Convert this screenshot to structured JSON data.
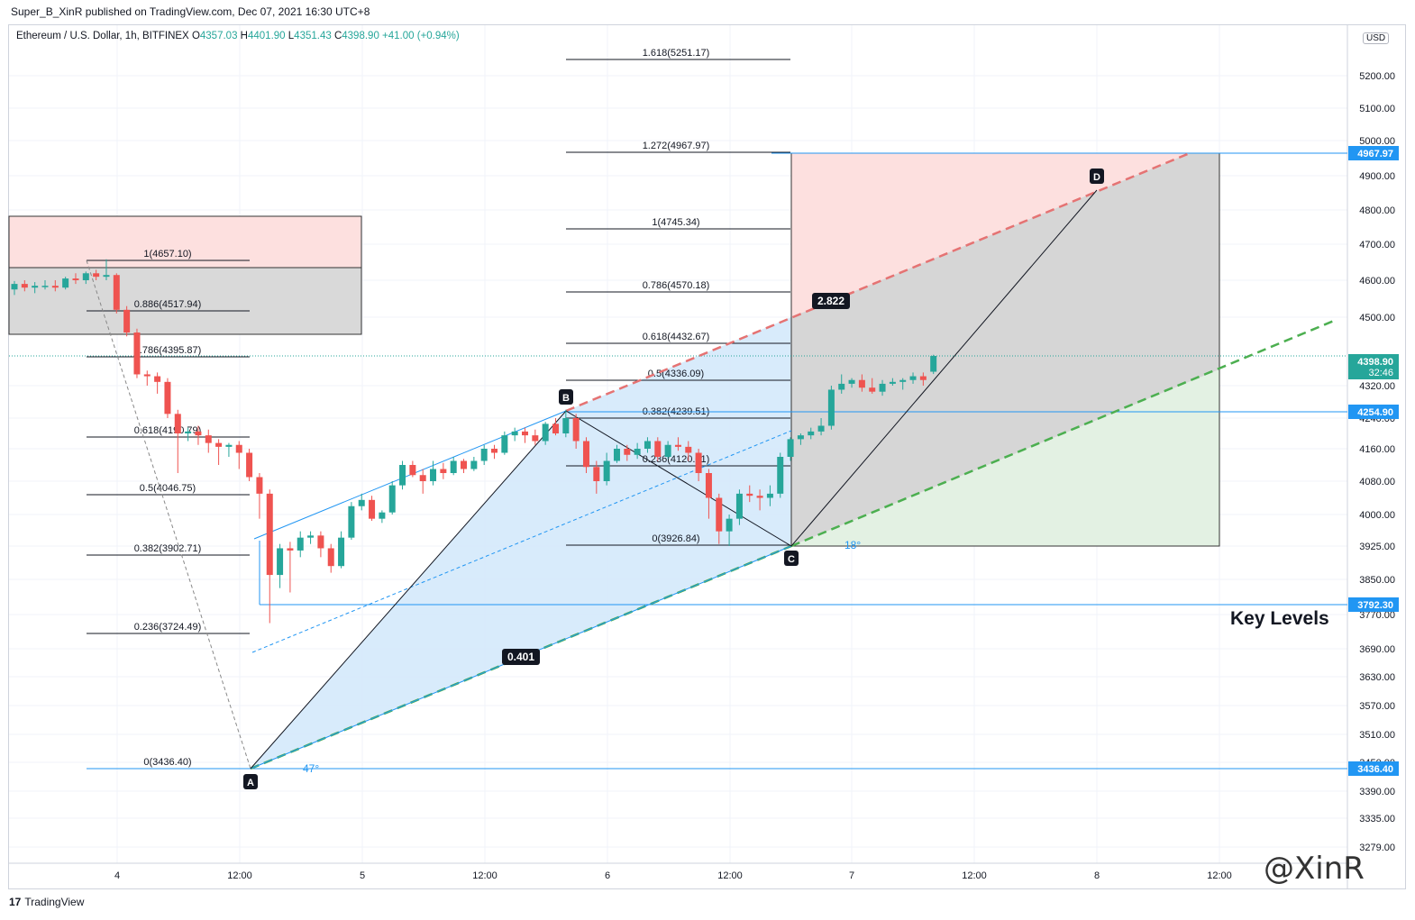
{
  "header": {
    "published": "Super_B_XinR published on TradingView.com, Dec 07, 2021 16:30 UTC+8"
  },
  "legend": {
    "symbol": "Ethereum / U.S. Dollar, 1h, BITFINEX",
    "o_label": "O",
    "o": "4357.03",
    "h_label": "H",
    "h": "4401.90",
    "l_label": "L",
    "l": "4351.43",
    "c_label": "C",
    "c": "4398.90",
    "change": "+41.00 (+0.94%)"
  },
  "currency_button": "USD",
  "footer": {
    "brand": "TradingView",
    "logo": "17"
  },
  "watermark": "@XinR",
  "annotation": "Key Levels",
  "colors": {
    "up": "#26a69a",
    "down": "#ef5350",
    "line": "#2196f3",
    "bull_fill": "#d4e9fb",
    "grid": "#f0f3fa"
  },
  "chart_data": {
    "type": "candlestick",
    "symbol": "ETHUSD",
    "timeframe": "1h",
    "exchange": "BITFINEX",
    "y_axis": {
      "ticks": [
        5200,
        5100,
        5000,
        4900,
        4800,
        4700,
        4600,
        4500,
        4320,
        4240,
        4160,
        4080,
        4000,
        3925,
        3850,
        3770,
        3690,
        3630,
        3570,
        3510,
        3450,
        3390,
        3335,
        3279
      ],
      "tick_labels": [
        "5200.00",
        "5100.00",
        "5000.00",
        "4900.00",
        "4800.00",
        "4700.00",
        "4600.00",
        "4500.00",
        "4320.00",
        "4240.00",
        "4160.00",
        "4080.00",
        "4000.00",
        "3925.00",
        "3850.00",
        "3770.00",
        "3690.00",
        "3630.00",
        "3570.00",
        "3510.00",
        "3450.00",
        "3390.00",
        "3335.00",
        "3279.00"
      ]
    },
    "x_axis": {
      "labels": [
        "4",
        "12:00",
        "5",
        "12:00",
        "6",
        "12:00",
        "7",
        "12:00",
        "8",
        "12:00"
      ]
    },
    "price_tags": [
      {
        "value": "4967.97",
        "color": "#2196f3"
      },
      {
        "value": "4398.90",
        "sub": "32:46",
        "color": "#26a69a"
      },
      {
        "value": "4254.90",
        "color": "#2196f3"
      },
      {
        "value": "3792.30",
        "color": "#2196f3"
      },
      {
        "value": "3436.40",
        "color": "#2196f3"
      }
    ],
    "fib_left": [
      {
        "label": "1(4657.10)"
      },
      {
        "label": "0.886(4517.94)"
      },
      {
        "label": "0.786(4395.87)"
      },
      {
        "label": "0.618(4190.79)"
      },
      {
        "label": "0.5(4046.75)"
      },
      {
        "label": "0.382(3902.71)"
      },
      {
        "label": "0.236(3724.49)"
      },
      {
        "label": "0(3436.40)"
      }
    ],
    "fib_right": [
      {
        "label": "1.618(5251.17)"
      },
      {
        "label": "1.272(4967.97)"
      },
      {
        "label": "1(4745.34)"
      },
      {
        "label": "0.786(4570.18)"
      },
      {
        "label": "0.618(4432.67)"
      },
      {
        "label": "0.5(4336.09)"
      },
      {
        "label": "0.382(4239.51)"
      },
      {
        "label": "0.236(4120.01)"
      },
      {
        "label": "0(3926.84)"
      }
    ],
    "pattern_points": [
      {
        "label": "A"
      },
      {
        "label": "B"
      },
      {
        "label": "C"
      },
      {
        "label": "D"
      }
    ],
    "ratio_labels": [
      "0.401",
      "2.822"
    ],
    "angle_labels": [
      "47°",
      "18°"
    ],
    "candles": [
      [
        4575,
        4598,
        4560,
        4590
      ],
      [
        4590,
        4600,
        4570,
        4580
      ],
      [
        4580,
        4595,
        4565,
        4585
      ],
      [
        4585,
        4600,
        4575,
        4585
      ],
      [
        4585,
        4600,
        4570,
        4580
      ],
      [
        4580,
        4610,
        4575,
        4605
      ],
      [
        4605,
        4620,
        4590,
        4600
      ],
      [
        4600,
        4625,
        4590,
        4620
      ],
      [
        4620,
        4630,
        4600,
        4610
      ],
      [
        4610,
        4660,
        4600,
        4615
      ],
      [
        4615,
        4620,
        4510,
        4520
      ],
      [
        4520,
        4530,
        4450,
        4460
      ],
      [
        4460,
        4470,
        4340,
        4350
      ],
      [
        4350,
        4360,
        4320,
        4345
      ],
      [
        4345,
        4355,
        4300,
        4330
      ],
      [
        4330,
        4340,
        4240,
        4250
      ],
      [
        4250,
        4260,
        4100,
        4200
      ],
      [
        4200,
        4215,
        4180,
        4205
      ],
      [
        4205,
        4220,
        4170,
        4195
      ],
      [
        4195,
        4210,
        4150,
        4175
      ],
      [
        4175,
        4185,
        4120,
        4165
      ],
      [
        4165,
        4175,
        4140,
        4170
      ],
      [
        4170,
        4180,
        4110,
        4150
      ],
      [
        4150,
        4160,
        4080,
        4090
      ],
      [
        4090,
        4100,
        3990,
        4050
      ],
      [
        4050,
        4060,
        3750,
        3860
      ],
      [
        3860,
        3930,
        3830,
        3920
      ],
      [
        3920,
        3935,
        3820,
        3915
      ],
      [
        3915,
        3960,
        3900,
        3945
      ],
      [
        3945,
        3960,
        3930,
        3950
      ],
      [
        3950,
        3960,
        3900,
        3920
      ],
      [
        3920,
        3930,
        3865,
        3880
      ],
      [
        3880,
        3960,
        3875,
        3945
      ],
      [
        3945,
        4030,
        3940,
        4020
      ],
      [
        4020,
        4050,
        4010,
        4035
      ],
      [
        4035,
        4045,
        3985,
        3990
      ],
      [
        3990,
        4010,
        3980,
        4005
      ],
      [
        4005,
        4080,
        4000,
        4070
      ],
      [
        4070,
        4130,
        4060,
        4120
      ],
      [
        4120,
        4130,
        4090,
        4095
      ],
      [
        4095,
        4110,
        4050,
        4080
      ],
      [
        4080,
        4130,
        4070,
        4110
      ],
      [
        4110,
        4125,
        4085,
        4100
      ],
      [
        4100,
        4140,
        4095,
        4130
      ],
      [
        4130,
        4135,
        4100,
        4110
      ],
      [
        4110,
        4140,
        4105,
        4130
      ],
      [
        4130,
        4170,
        4120,
        4160
      ],
      [
        4160,
        4170,
        4135,
        4150
      ],
      [
        4150,
        4205,
        4145,
        4195
      ],
      [
        4195,
        4215,
        4180,
        4205
      ],
      [
        4205,
        4215,
        4175,
        4195
      ],
      [
        4195,
        4210,
        4170,
        4180
      ],
      [
        4180,
        4230,
        4170,
        4225
      ],
      [
        4225,
        4240,
        4195,
        4200
      ],
      [
        4200,
        4260,
        4190,
        4240
      ],
      [
        4240,
        4250,
        4160,
        4180
      ],
      [
        4180,
        4190,
        4100,
        4115
      ],
      [
        4115,
        4130,
        4050,
        4080
      ],
      [
        4080,
        4150,
        4070,
        4130
      ],
      [
        4130,
        4170,
        4125,
        4160
      ],
      [
        4160,
        4170,
        4130,
        4145
      ],
      [
        4145,
        4175,
        4135,
        4160
      ],
      [
        4160,
        4190,
        4150,
        4180
      ],
      [
        4180,
        4190,
        4130,
        4140
      ],
      [
        4140,
        4180,
        4135,
        4170
      ],
      [
        4170,
        4190,
        4155,
        4165
      ],
      [
        4165,
        4180,
        4130,
        4150
      ],
      [
        4150,
        4160,
        4080,
        4100
      ],
      [
        4100,
        4110,
        3990,
        4040
      ],
      [
        4040,
        4050,
        3930,
        3960
      ],
      [
        3960,
        4000,
        3925,
        3990
      ],
      [
        3990,
        4060,
        3975,
        4050
      ],
      [
        4050,
        4070,
        4030,
        4045
      ],
      [
        4045,
        4060,
        4010,
        4040
      ],
      [
        4040,
        4070,
        4020,
        4050
      ],
      [
        4050,
        4150,
        4040,
        4140
      ],
      [
        4140,
        4190,
        4130,
        4185
      ],
      [
        4185,
        4200,
        4170,
        4195
      ],
      [
        4195,
        4215,
        4185,
        4205
      ],
      [
        4205,
        4240,
        4195,
        4220
      ],
      [
        4220,
        4320,
        4210,
        4310
      ],
      [
        4310,
        4350,
        4300,
        4325
      ],
      [
        4325,
        4340,
        4315,
        4335
      ],
      [
        4335,
        4350,
        4305,
        4315
      ],
      [
        4315,
        4340,
        4300,
        4305
      ],
      [
        4305,
        4335,
        4295,
        4325
      ],
      [
        4325,
        4340,
        4320,
        4330
      ],
      [
        4330,
        4340,
        4310,
        4335
      ],
      [
        4335,
        4355,
        4325,
        4345
      ],
      [
        4345,
        4355,
        4320,
        4335
      ],
      [
        4357,
        4402,
        4351,
        4399
      ]
    ]
  }
}
